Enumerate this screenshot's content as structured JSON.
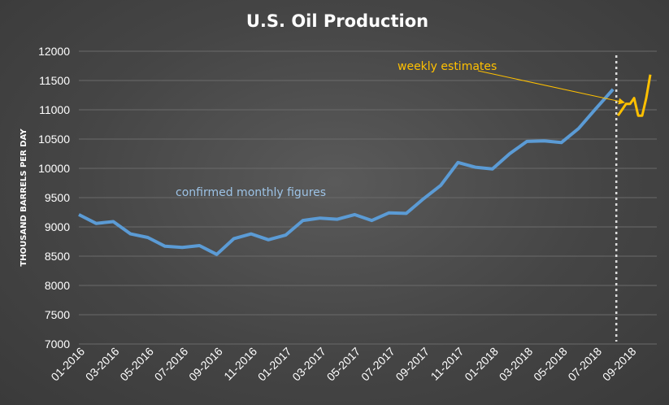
{
  "chart_data": {
    "type": "line",
    "title": "U.S. Oil Production",
    "ylabel": "THOUSAND BARRELS PER DAY",
    "xlabel": "",
    "ylim": [
      7000,
      12000
    ],
    "yticks": [
      "12000",
      "11500",
      "11000",
      "10500",
      "10000",
      "9500",
      "9000",
      "8500",
      "8000",
      "7500",
      "7000"
    ],
    "xticks": [
      "01-2016",
      "03-2016",
      "05-2016",
      "07-2016",
      "09-2016",
      "11-2016",
      "01-2017",
      "03-2017",
      "05-2017",
      "07-2017",
      "09-2017",
      "11-2017",
      "01-2018",
      "03-2018",
      "05-2018",
      "07-2018",
      "09-2018"
    ],
    "grid": true,
    "series": [
      {
        "key": "monthly",
        "color": "#5b9bd5",
        "x": [
          "01-2016",
          "02-2016",
          "03-2016",
          "04-2016",
          "05-2016",
          "06-2016",
          "07-2016",
          "08-2016",
          "09-2016",
          "10-2016",
          "11-2016",
          "12-2016",
          "01-2017",
          "02-2017",
          "03-2017",
          "04-2017",
          "05-2017",
          "06-2017",
          "07-2017",
          "08-2017",
          "09-2017",
          "10-2017",
          "11-2017",
          "12-2017",
          "01-2018",
          "02-2018",
          "03-2018",
          "04-2018",
          "05-2018",
          "06-2018",
          "07-2018",
          "08-2018"
        ],
        "values": [
          9210,
          9060,
          9090,
          8880,
          8820,
          8670,
          8650,
          8680,
          8530,
          8800,
          8880,
          8780,
          8860,
          9110,
          9150,
          9130,
          9210,
          9110,
          9240,
          9230,
          9480,
          9710,
          10100,
          10020,
          9990,
          10250,
          10460,
          10470,
          10440,
          10680,
          11020,
          11350
        ]
      },
      {
        "key": "weekly",
        "color": "#ffc000",
        "x": [
          "09-2018 wk1",
          "09-2018 wk2",
          "09-2018 wk3",
          "09-2018 wk4",
          "10-2018 wk1",
          "10-2018 wk2",
          "10-2018 wk3",
          "10-2018 wk4",
          "11-2018 wk1"
        ],
        "values": [
          10900,
          11000,
          11100,
          11100,
          11200,
          10900,
          10900,
          11200,
          11600
        ]
      }
    ],
    "divider_between": [
      "08-2018",
      "09-2018"
    ],
    "annotations": [
      {
        "key": "monthly",
        "text": "confirmed monthly figures",
        "color": "#9dc3e6"
      },
      {
        "key": "weekly",
        "text": "weekly estimates",
        "color": "#ffc000"
      }
    ]
  }
}
